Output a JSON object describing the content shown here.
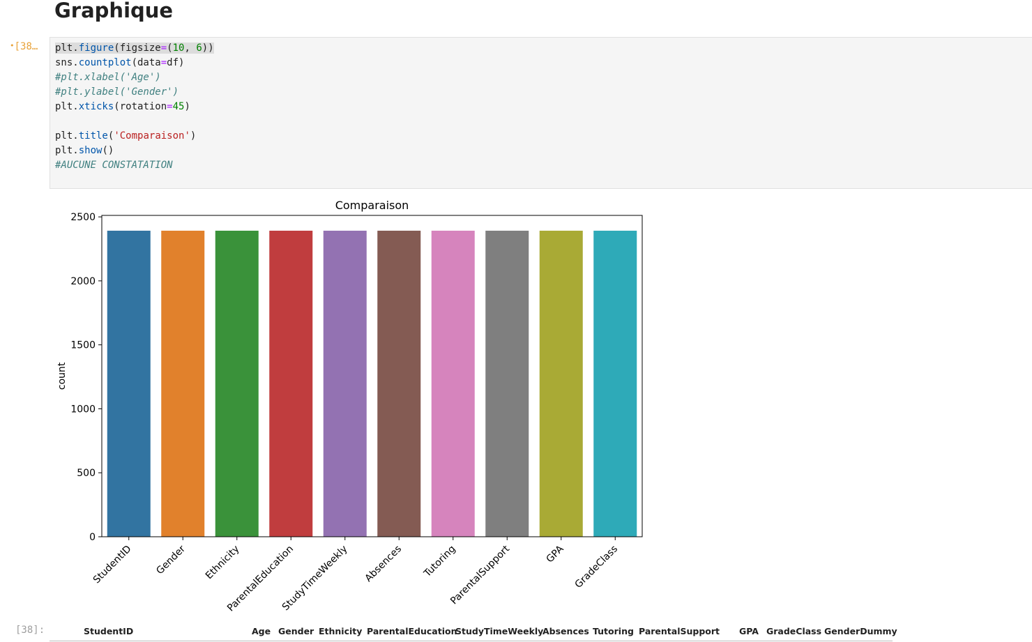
{
  "heading": "Graphique",
  "cell": {
    "prompt_in": "[38…",
    "prompt_dot": "•",
    "prompt_out": "[38]:"
  },
  "chart_data": {
    "type": "bar",
    "title": "Comparaison",
    "xlabel": "",
    "ylabel": "count",
    "categories": [
      "StudentID",
      "Gender",
      "Ethnicity",
      "ParentalEducation",
      "StudyTimeWeekly",
      "Absences",
      "Tutoring",
      "ParentalSupport",
      "GPA",
      "GradeClass"
    ],
    "values": [
      2392,
      2392,
      2392,
      2392,
      2392,
      2392,
      2392,
      2392,
      2392,
      2392
    ],
    "ylim": [
      0,
      2511.6
    ],
    "yticks": [
      0,
      500,
      1000,
      1500,
      2000,
      2500
    ],
    "colors": [
      "#3274a1",
      "#e1812c",
      "#3a923a",
      "#c03d3e",
      "#9372b2",
      "#845b53",
      "#d684bd",
      "#7f7f7f",
      "#a9aa35",
      "#2eaab8"
    ],
    "xtick_rotation": 45,
    "grid": false
  },
  "dataframe": {
    "columns": [
      "StudentID",
      "Age",
      "Gender",
      "Ethnicity",
      "ParentalEducation",
      "StudyTimeWeekly",
      "Absences",
      "Tutoring",
      "ParentalSupport",
      "GPA",
      "GradeClass",
      "GenderDummy"
    ]
  }
}
